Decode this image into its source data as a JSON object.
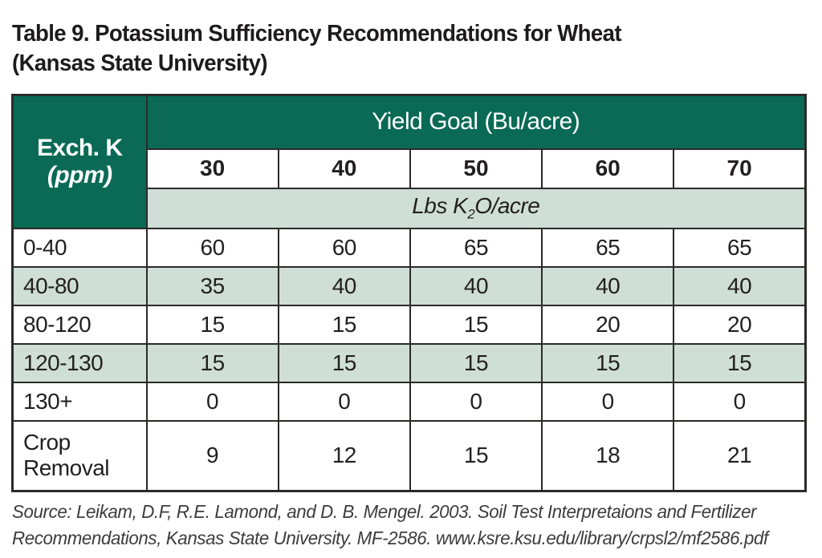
{
  "title": {
    "line1": "Table 9. Potassium Sufficiency Recommendations for Wheat",
    "line2": "(Kansas State University)"
  },
  "table": {
    "row_header": {
      "label": "Exch. K",
      "sublabel": "(ppm)"
    },
    "col_group_header": "Yield Goal (Bu/acre)",
    "yield_goals": [
      "30",
      "40",
      "50",
      "60",
      "70"
    ],
    "units_header": {
      "prefix": "Lbs K",
      "sub": "2",
      "suffix": "O/acre"
    },
    "rows": [
      {
        "label": "0-40",
        "values": [
          "60",
          "60",
          "65",
          "65",
          "65"
        ],
        "shaded": false
      },
      {
        "label": "40-80",
        "values": [
          "35",
          "40",
          "40",
          "40",
          "40"
        ],
        "shaded": true
      },
      {
        "label": "80-120",
        "values": [
          "15",
          "15",
          "15",
          "20",
          "20"
        ],
        "shaded": false
      },
      {
        "label": "120-130",
        "values": [
          "15",
          "15",
          "15",
          "15",
          "15"
        ],
        "shaded": true
      },
      {
        "label": "130+",
        "values": [
          "0",
          "0",
          "0",
          "0",
          "0"
        ],
        "shaded": false
      },
      {
        "label": "Crop Removal",
        "values": [
          "9",
          "12",
          "15",
          "18",
          "21"
        ],
        "shaded": false
      }
    ]
  },
  "source": {
    "line1": "Source: Leikam, D.F, R.E. Lamond, and D. B. Mengel. 2003. Soil Test Interpretaions and Fertilizer",
    "line2": "Recommendations, Kansas State University. MF-2586. www.ksre.ksu.edu/library/crpsl2/mf2586.pdf"
  },
  "colors": {
    "header_green": "#0a6a55",
    "row_shade_green": "#cfded6",
    "border": "#2b2a29",
    "text": "#231f20"
  },
  "chart_data": {
    "type": "table",
    "title": "Table 9. Potassium Sufficiency Recommendations for Wheat (Kansas State University)",
    "row_axis_label": "Exch. K (ppm)",
    "column_group_label": "Yield Goal (Bu/acre)",
    "columns": [
      30,
      40,
      50,
      60,
      70
    ],
    "units": "Lbs K2O/acre",
    "rows": [
      {
        "category": "0-40",
        "values": [
          60,
          60,
          65,
          65,
          65
        ]
      },
      {
        "category": "40-80",
        "values": [
          35,
          40,
          40,
          40,
          40
        ]
      },
      {
        "category": "80-120",
        "values": [
          15,
          15,
          15,
          20,
          20
        ]
      },
      {
        "category": "120-130",
        "values": [
          15,
          15,
          15,
          15,
          15
        ]
      },
      {
        "category": "130+",
        "values": [
          0,
          0,
          0,
          0,
          0
        ]
      },
      {
        "category": "Crop Removal",
        "values": [
          9,
          12,
          15,
          18,
          21
        ]
      }
    ]
  }
}
